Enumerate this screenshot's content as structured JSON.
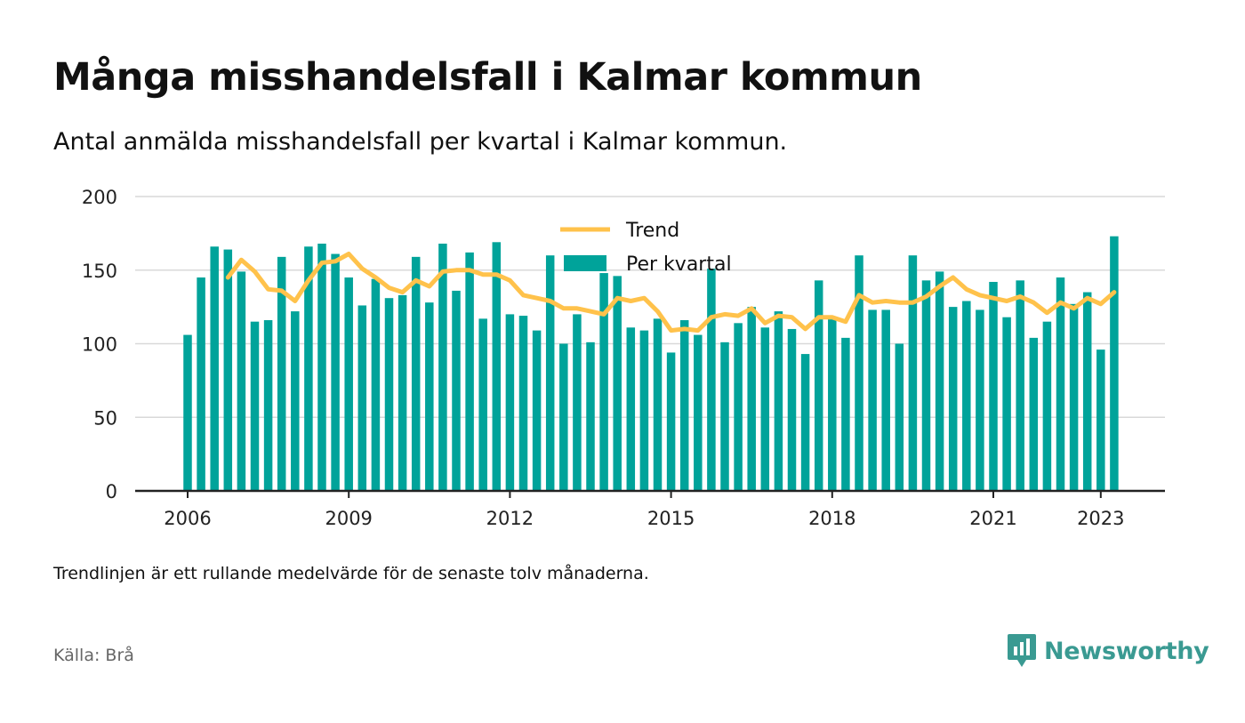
{
  "title": "Många misshandelsfall i Kalmar kommun",
  "subtitle": "Antal anmälda misshandelsfall per kvartal i Kalmar kommun.",
  "note": "Trendlinjen är ett rullande medelvärde för de senaste tolv månaderna.",
  "source": "Källa: Brå",
  "brand": {
    "name": "Newsworthy",
    "icon": "newsworthy-logo-icon",
    "color": "#3a9a92"
  },
  "colors": {
    "bar": "#00a39a",
    "trend": "#ffc24b",
    "grid": "#d9d9d9",
    "axis": "#222222"
  },
  "chart_data": {
    "type": "bar",
    "x_start_year": 2006,
    "x_ticks": [
      "2006",
      "2009",
      "2012",
      "2015",
      "2018",
      "2021",
      "2023"
    ],
    "ylim": [
      0,
      200
    ],
    "y_ticks": [
      0,
      50,
      100,
      150,
      200
    ],
    "grid": true,
    "legend": {
      "position": "top-center"
    },
    "series": [
      {
        "name": "Per kvartal",
        "type": "bar",
        "values": [
          106,
          145,
          166,
          164,
          149,
          115,
          116,
          159,
          122,
          166,
          168,
          161,
          145,
          126,
          144,
          131,
          133,
          159,
          128,
          168,
          136,
          162,
          117,
          169,
          120,
          119,
          109,
          160,
          100,
          120,
          101,
          148,
          146,
          111,
          109,
          117,
          94,
          116,
          106,
          151,
          101,
          114,
          125,
          111,
          122,
          110,
          93,
          143,
          117,
          104,
          160,
          123,
          123,
          100,
          160,
          143,
          149,
          125,
          129,
          123,
          142,
          118,
          143,
          104,
          115,
          145,
          127,
          135,
          96,
          173
        ]
      },
      {
        "name": "Trend",
        "type": "line",
        "values": [
          null,
          null,
          null,
          145,
          157,
          149,
          137,
          136,
          129,
          143,
          155,
          156,
          161,
          151,
          145,
          138,
          135,
          143,
          139,
          149,
          150,
          150,
          147,
          147,
          143,
          133,
          131,
          129,
          124,
          124,
          122,
          120,
          131,
          129,
          131,
          122,
          109,
          110,
          109,
          118,
          120,
          119,
          124,
          114,
          119,
          118,
          110,
          118,
          118,
          115,
          133,
          128,
          129,
          128,
          128,
          132,
          139,
          145,
          137,
          133,
          131,
          129,
          132,
          128,
          121,
          128,
          124,
          131,
          127,
          135
        ]
      }
    ]
  }
}
